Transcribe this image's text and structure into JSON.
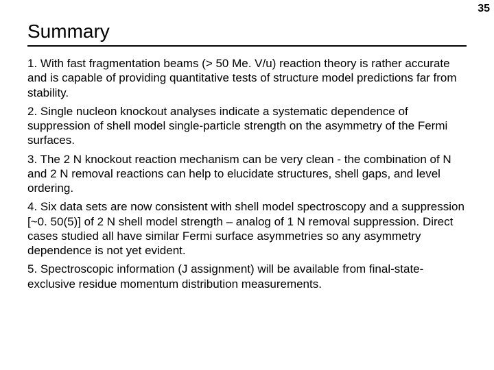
{
  "page_number": "35",
  "title": "Summary",
  "paragraphs": [
    "1. With fast fragmentation beams (> 50 Me. V/u) reaction theory is rather accurate and is capable of providing quantitative tests of structure model predictions far from stability.",
    "2. Single nucleon knockout analyses indicate a systematic dependence of suppression of shell model single-particle strength on the asymmetry of the Fermi surfaces.",
    "3. The 2 N knockout reaction mechanism can be very clean - the combination of N and 2 N removal reactions can help to elucidate structures, shell gaps, and level ordering.",
    "4. Six data sets are now consistent with shell model spectroscopy and a suppression [~0. 50(5)] of 2 N shell model strength – analog of 1 N removal suppression. Direct cases studied all have similar Fermi surface asymmetries so any asymmetry dependence is not yet evident.",
    "5. Spectroscopic information (J assignment) will be available from final-state-exclusive residue momentum distribution measurements."
  ],
  "colors": {
    "background": "#ffffff",
    "text": "#000000",
    "rule": "#000000"
  },
  "typography": {
    "title_fontsize": 28,
    "body_fontsize": 17,
    "font_family": "Arial"
  }
}
